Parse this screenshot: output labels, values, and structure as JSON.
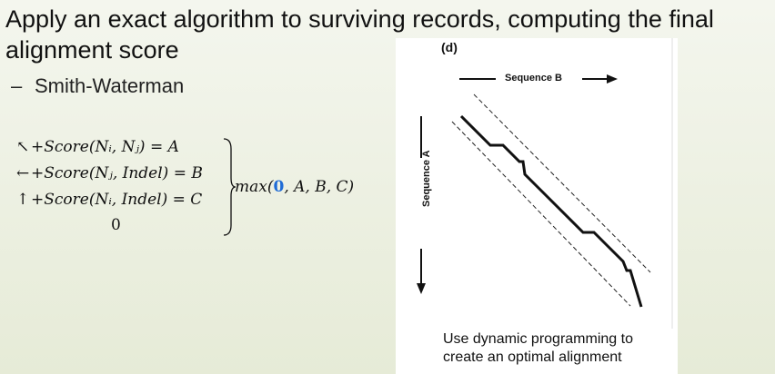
{
  "slide": {
    "title": "Apply an exact algorithm to surviving records, computing the final alignment score",
    "bullet": {
      "dash": "–",
      "text": "Smith-Waterman"
    },
    "formula": {
      "rows": [
        {
          "arrow": "↖",
          "expr": "+Score(Nᵢ, Nⱼ) = A"
        },
        {
          "arrow": "←",
          "expr": "+Score(Nⱼ, Indel) = B"
        },
        {
          "arrow": "↑",
          "expr": "+Score(Nᵢ, Indel) = C"
        },
        {
          "arrow": "",
          "expr": "0"
        }
      ],
      "max_prefix": "max(",
      "max_zero": "0",
      "max_suffix": ", A, B, C)"
    },
    "figure": {
      "label": "(d)",
      "sequence_b": "Sequence B",
      "sequence_a": "Sequence A",
      "caption": "Use dynamic programming to create an optimal alignment"
    }
  }
}
